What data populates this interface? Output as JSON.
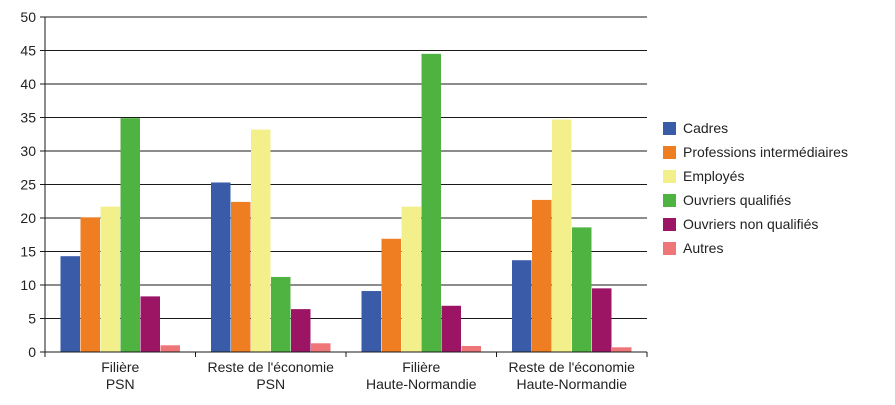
{
  "chart_data": {
    "type": "bar",
    "title": "",
    "xlabel": "",
    "ylabel": "",
    "ylim": [
      0,
      50
    ],
    "yticks": [
      0,
      5,
      10,
      15,
      20,
      25,
      30,
      35,
      40,
      45,
      50
    ],
    "grid": true,
    "legend_position": "right",
    "categories": [
      [
        "Filière",
        "PSN"
      ],
      [
        "Reste de l'économie",
        "PSN"
      ],
      [
        "Filière",
        "Haute-Normandie"
      ],
      [
        "Reste de l'économie",
        "Haute-Normandie"
      ]
    ],
    "series": [
      {
        "name": "Cadres",
        "color": "#3a5ca8",
        "values": [
          14.3,
          25.3,
          9.1,
          13.7
        ]
      },
      {
        "name": "Professions intermédiaires",
        "color": "#ef7d22",
        "values": [
          20.1,
          22.4,
          16.9,
          22.7
        ]
      },
      {
        "name": "Employés",
        "color": "#f3f08c",
        "values": [
          21.7,
          33.2,
          21.7,
          34.7
        ]
      },
      {
        "name": "Ouvriers qualifiés",
        "color": "#4fb342",
        "values": [
          34.9,
          11.2,
          44.5,
          18.6
        ]
      },
      {
        "name": "Ouvriers non qualifiés",
        "color": "#9c1565",
        "values": [
          8.3,
          6.4,
          6.9,
          9.5
        ]
      },
      {
        "name": "Autres",
        "color": "#ee7578",
        "values": [
          1.0,
          1.3,
          0.9,
          0.7
        ]
      }
    ]
  }
}
